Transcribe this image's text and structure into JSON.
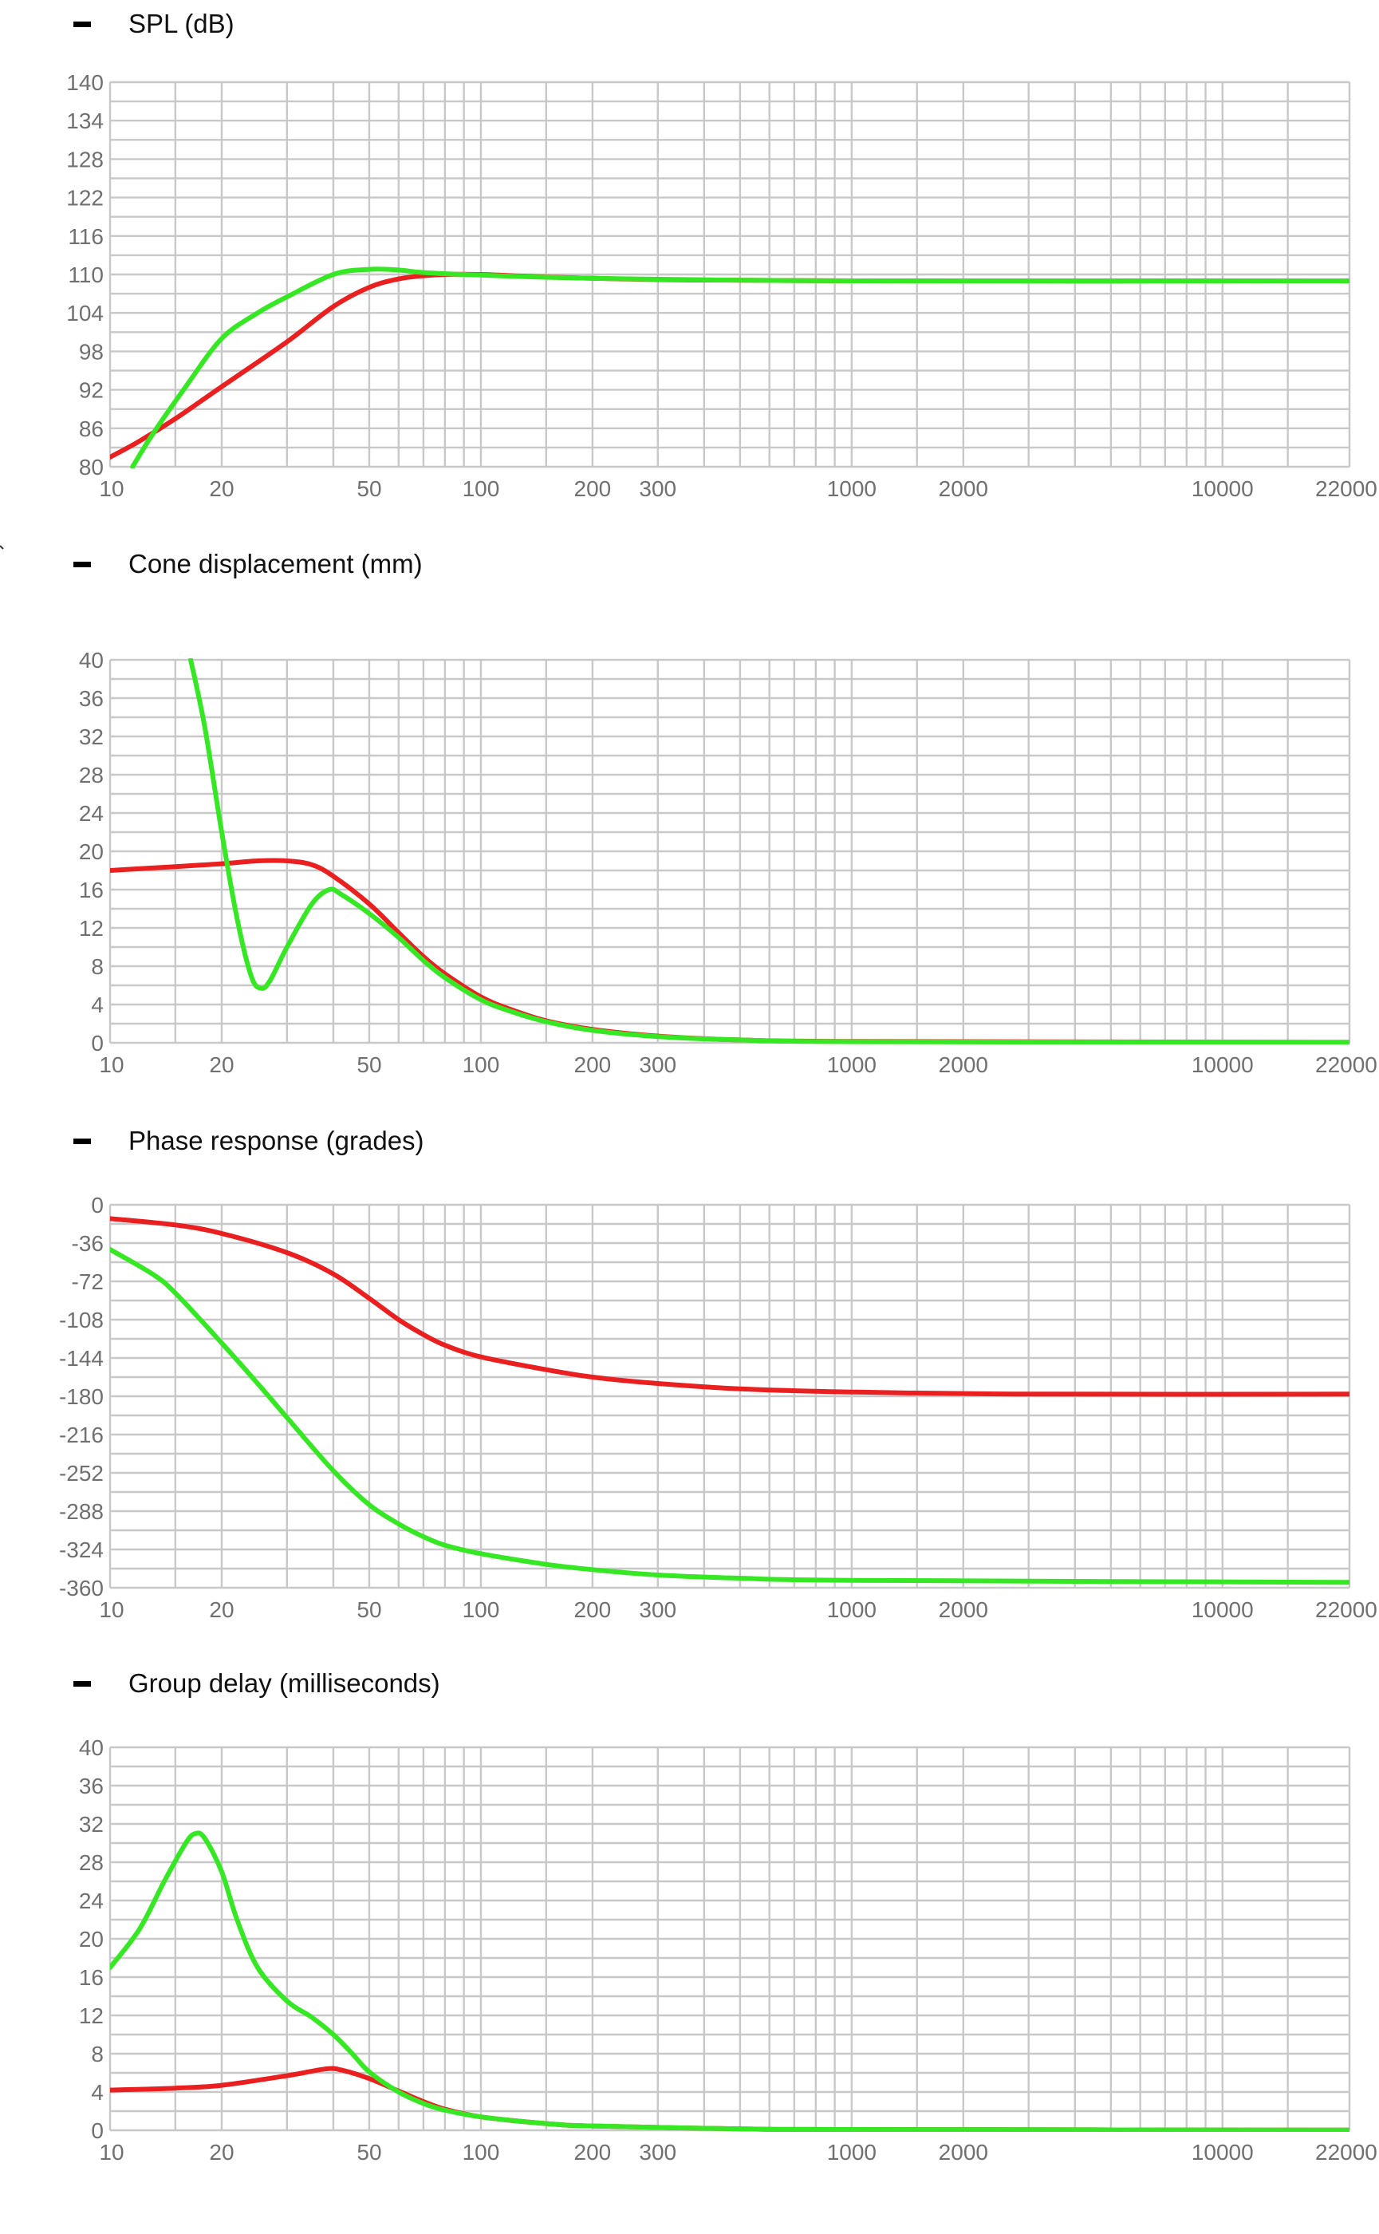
{
  "colors": {
    "red": "#ea2020",
    "green": "#36e824",
    "grid": "#c8c8c8",
    "tick": "#707070"
  },
  "panel_icon": "collapse-dash-icon",
  "chart_data": [
    {
      "type": "line",
      "title": "SPL (dB)",
      "xscale": "log",
      "xlim": [
        10,
        22000
      ],
      "ylim": [
        80,
        140
      ],
      "x_ticks": [
        "10",
        "20",
        "50",
        "100",
        "200",
        "300",
        "1000",
        "2000",
        "10000",
        "22000"
      ],
      "y_ticks": [
        "140",
        "134",
        "128",
        "122",
        "116",
        "110",
        "104",
        "98",
        "92",
        "86",
        "80"
      ],
      "grid": true,
      "series": [
        {
          "color": "#ea2020",
          "points": [
            [
              10,
              81.5
            ],
            [
              12,
              84
            ],
            [
              15,
              87.5
            ],
            [
              20,
              92.5
            ],
            [
              30,
              99.5
            ],
            [
              40,
              105
            ],
            [
              50,
              108
            ],
            [
              60,
              109.3
            ],
            [
              70,
              109.8
            ],
            [
              80,
              110
            ],
            [
              100,
              110
            ],
            [
              150,
              109.6
            ],
            [
              300,
              109.2
            ],
            [
              1000,
              109
            ],
            [
              22000,
              109
            ]
          ]
        },
        {
          "color": "#36e824",
          "points": [
            [
              11.5,
              80
            ],
            [
              13,
              85
            ],
            [
              16,
              92.5
            ],
            [
              20,
              100
            ],
            [
              25,
              104
            ],
            [
              30,
              106.5
            ],
            [
              40,
              110
            ],
            [
              50,
              110.8
            ],
            [
              60,
              110.7
            ],
            [
              70,
              110.3
            ],
            [
              100,
              109.9
            ],
            [
              200,
              109.4
            ],
            [
              1000,
              109
            ],
            [
              22000,
              109
            ]
          ]
        }
      ]
    },
    {
      "type": "line",
      "title": "Cone displacement (mm)",
      "xscale": "log",
      "xlim": [
        10,
        22000
      ],
      "ylim": [
        0,
        40
      ],
      "x_ticks": [
        "10",
        "20",
        "50",
        "100",
        "200",
        "300",
        "1000",
        "2000",
        "10000",
        "22000"
      ],
      "y_ticks": [
        "40",
        "36",
        "32",
        "28",
        "24",
        "20",
        "16",
        "12",
        "8",
        "4",
        "0"
      ],
      "grid": true,
      "series": [
        {
          "color": "#ea2020",
          "points": [
            [
              10,
              18
            ],
            [
              15,
              18.4
            ],
            [
              20,
              18.7
            ],
            [
              25,
              19
            ],
            [
              30,
              19
            ],
            [
              35,
              18.6
            ],
            [
              40,
              17.4
            ],
            [
              50,
              14.5
            ],
            [
              60,
              11.5
            ],
            [
              70,
              9
            ],
            [
              80,
              7.2
            ],
            [
              100,
              4.8
            ],
            [
              120,
              3.5
            ],
            [
              150,
              2.3
            ],
            [
              200,
              1.4
            ],
            [
              300,
              0.7
            ],
            [
              500,
              0.3
            ],
            [
              1000,
              0.15
            ],
            [
              22000,
              0.05
            ]
          ]
        },
        {
          "color": "#36e824",
          "points": [
            [
              16.5,
              40
            ],
            [
              18,
              33
            ],
            [
              20,
              22
            ],
            [
              22,
              13
            ],
            [
              24,
              7
            ],
            [
              25.5,
              5.7
            ],
            [
              27,
              6.5
            ],
            [
              30,
              10
            ],
            [
              35,
              14.5
            ],
            [
              39,
              16
            ],
            [
              42,
              15.5
            ],
            [
              50,
              13.5
            ],
            [
              60,
              11
            ],
            [
              70,
              8.6
            ],
            [
              80,
              6.8
            ],
            [
              100,
              4.5
            ],
            [
              120,
              3.3
            ],
            [
              150,
              2.2
            ],
            [
              200,
              1.3
            ],
            [
              300,
              0.65
            ],
            [
              500,
              0.3
            ],
            [
              1000,
              0.12
            ],
            [
              22000,
              0.05
            ]
          ]
        }
      ]
    },
    {
      "type": "line",
      "title": "Phase response (grades)",
      "xscale": "log",
      "xlim": [
        10,
        22000
      ],
      "ylim": [
        -360,
        0
      ],
      "x_ticks": [
        "10",
        "20",
        "50",
        "100",
        "200",
        "300",
        "1000",
        "2000",
        "10000",
        "22000"
      ],
      "y_ticks": [
        "0",
        "-36",
        "-72",
        "-108",
        "-144",
        "-180",
        "-216",
        "-252",
        "-288",
        "-324",
        "-360"
      ],
      "grid": true,
      "series": [
        {
          "color": "#ea2020",
          "points": [
            [
              10,
              -13
            ],
            [
              15,
              -19
            ],
            [
              20,
              -27
            ],
            [
              30,
              -45
            ],
            [
              40,
              -65
            ],
            [
              50,
              -88
            ],
            [
              60,
              -108
            ],
            [
              70,
              -122
            ],
            [
              80,
              -132
            ],
            [
              100,
              -143
            ],
            [
              150,
              -155
            ],
            [
              200,
              -162
            ],
            [
              300,
              -168
            ],
            [
              500,
              -173
            ],
            [
              1000,
              -176
            ],
            [
              3000,
              -178
            ],
            [
              22000,
              -178
            ]
          ]
        },
        {
          "color": "#36e824",
          "points": [
            [
              10,
              -42
            ],
            [
              13,
              -65
            ],
            [
              15,
              -83
            ],
            [
              20,
              -130
            ],
            [
              25,
              -168
            ],
            [
              30,
              -200
            ],
            [
              40,
              -250
            ],
            [
              50,
              -282
            ],
            [
              60,
              -300
            ],
            [
              70,
              -312
            ],
            [
              80,
              -320
            ],
            [
              100,
              -328
            ],
            [
              150,
              -338
            ],
            [
              200,
              -343
            ],
            [
              300,
              -348
            ],
            [
              500,
              -351
            ],
            [
              1000,
              -353
            ],
            [
              22000,
              -355
            ]
          ]
        }
      ]
    },
    {
      "type": "line",
      "title": "Group delay (milliseconds)",
      "xscale": "log",
      "xlim": [
        10,
        22000
      ],
      "ylim": [
        0,
        40
      ],
      "x_ticks": [
        "10",
        "20",
        "50",
        "100",
        "200",
        "300",
        "1000",
        "2000",
        "10000",
        "22000"
      ],
      "y_ticks": [
        "40",
        "36",
        "32",
        "28",
        "24",
        "20",
        "16",
        "12",
        "8",
        "4",
        "0"
      ],
      "grid": true,
      "series": [
        {
          "color": "#ea2020",
          "points": [
            [
              10,
              4.2
            ],
            [
              15,
              4.4
            ],
            [
              20,
              4.7
            ],
            [
              30,
              5.7
            ],
            [
              38,
              6.4
            ],
            [
              42,
              6.3
            ],
            [
              50,
              5.4
            ],
            [
              60,
              4.1
            ],
            [
              70,
              3
            ],
            [
              80,
              2.2
            ],
            [
              100,
              1.4
            ],
            [
              150,
              0.7
            ],
            [
              200,
              0.45
            ],
            [
              500,
              0.15
            ],
            [
              1000,
              0.08
            ],
            [
              22000,
              0.02
            ]
          ]
        },
        {
          "color": "#36e824",
          "points": [
            [
              10,
              17
            ],
            [
              12,
              21
            ],
            [
              14,
              26
            ],
            [
              16,
              30
            ],
            [
              17,
              31
            ],
            [
              18,
              30.5
            ],
            [
              20,
              27
            ],
            [
              22,
              22
            ],
            [
              25,
              17
            ],
            [
              30,
              13.5
            ],
            [
              35,
              11.8
            ],
            [
              40,
              10
            ],
            [
              45,
              8
            ],
            [
              50,
              6.1
            ],
            [
              60,
              4
            ],
            [
              70,
              2.8
            ],
            [
              80,
              2.1
            ],
            [
              100,
              1.4
            ],
            [
              150,
              0.7
            ],
            [
              200,
              0.45
            ],
            [
              500,
              0.15
            ],
            [
              1000,
              0.08
            ],
            [
              22000,
              0.02
            ]
          ]
        }
      ]
    }
  ]
}
